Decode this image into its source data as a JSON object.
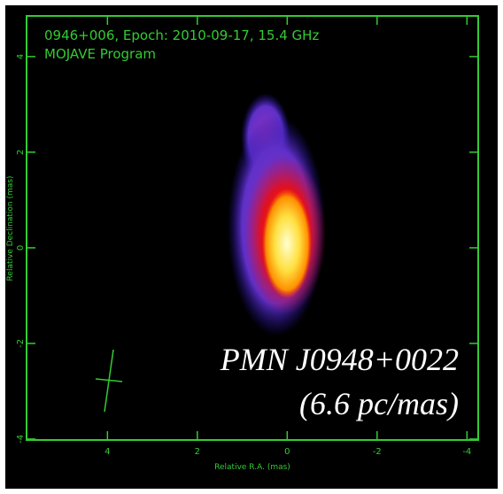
{
  "chart_data": {
    "type": "image",
    "title": "0946+006, Epoch: 2010-09-17, 15.4 GHz",
    "subtitle": "MOJAVE Program",
    "xlabel": "Relative R.A. (mas)",
    "ylabel": "Relative Declination (mas)",
    "xlim": [
      5.8,
      -4.25
    ],
    "ylim": [
      -4.02,
      4.85
    ],
    "xticks": [
      4,
      2,
      0,
      -2,
      -4
    ],
    "yticks": [
      -4,
      -2,
      0,
      2,
      4
    ],
    "annotations": [
      "PMN J0948+0022",
      "(6.6 pc/mas)"
    ],
    "color": "#33cc33"
  }
}
